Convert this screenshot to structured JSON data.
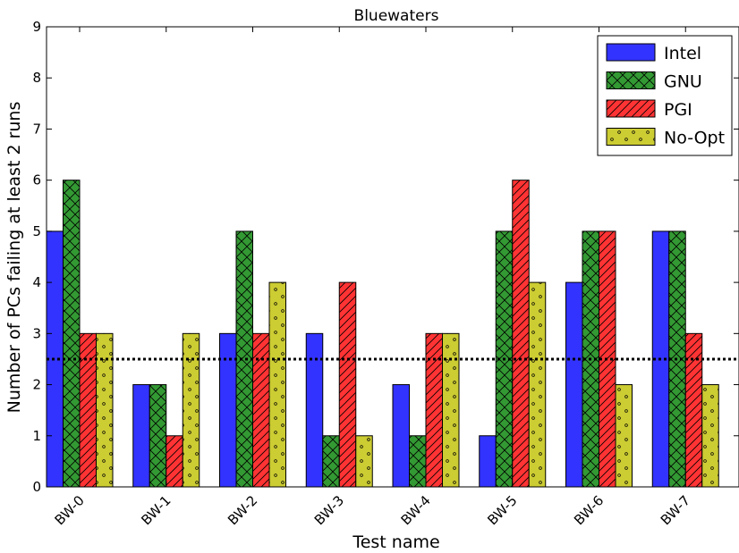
{
  "chart_data": {
    "type": "bar",
    "title": "Bluewaters",
    "xlabel": "Test name",
    "ylabel": "Number of PCs failing at least 2 runs",
    "categories": [
      "BW-0",
      "BW-1",
      "BW-2",
      "BW-3",
      "BW-4",
      "BW-5",
      "BW-6",
      "BW-7"
    ],
    "ylim": [
      0,
      9
    ],
    "yticks": [
      0,
      1,
      2,
      3,
      4,
      5,
      6,
      7,
      8,
      9
    ],
    "series": [
      {
        "name": "Intel",
        "values": [
          5,
          2,
          3,
          3,
          2,
          1,
          4,
          5
        ],
        "color": "#3333ff",
        "hatch": "none"
      },
      {
        "name": "GNU",
        "values": [
          6,
          2,
          5,
          1,
          1,
          5,
          5,
          5
        ],
        "color": "#339933",
        "hatch": "crosshatch"
      },
      {
        "name": "PGI",
        "values": [
          3,
          1,
          3,
          4,
          3,
          6,
          5,
          3
        ],
        "color": "#ff3333",
        "hatch": "diagonal"
      },
      {
        "name": "No-Opt",
        "values": [
          3,
          3,
          4,
          1,
          3,
          4,
          2,
          2
        ],
        "color": "#cccc33",
        "hatch": "dots"
      }
    ],
    "reference_line": {
      "y": 2.5,
      "style": "dotted"
    },
    "legend_position": "top-right",
    "grid": false
  }
}
